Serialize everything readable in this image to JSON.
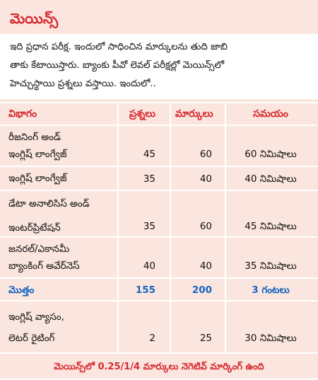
{
  "title": "మెయిన్స్",
  "intro_lines": [
    "ఇది ప్రధాన పరీక్ష. ఇందులో సాధించిన మార్కులను తుది జాబి",
    "తాకు కేటాయిస్తారు. బ్యాంకు పీవో లెవల్ పరీక్షల్లో మెయిన్స్‌లో",
    "హెచ్చుస్థాయి ప్రశ్నలు వస్తాయి. ఇందులో.."
  ],
  "table": {
    "headers": [
      "విభాగం",
      "ప్రశ్నలు",
      "మార్కులు",
      "సమయం"
    ],
    "rows": [
      {
        "label": [
          "రీజనింగ్ అండ్",
          "ఇంగ్లిష్ లాంగ్వేజ్"
        ],
        "questions": "45",
        "marks": "60",
        "time": "60 నిమిషాలు"
      },
      {
        "label": [
          "ఇంగ్లిష్ లాంగ్వేజ్"
        ],
        "questions": "35",
        "marks": "40",
        "time": "40 నిమిషాలు"
      },
      {
        "label": [
          "డేటా అనాలిసిస్ అండ్",
          "ఇంటర్‌ప్రిటేషన్"
        ],
        "questions": "35",
        "marks": "60",
        "time": "45 నిమిషాలు"
      },
      {
        "label": [
          "జనరల్/ఎకానమీ",
          "బ్యాంకింగ్ అవేర్‌నెస్"
        ],
        "questions": "40",
        "marks": "40",
        "time": "35 నిమిషాలు"
      }
    ],
    "total": {
      "label": "మొత్తం",
      "questions": "155",
      "marks": "200",
      "time": "3 గంటలు"
    },
    "extra": {
      "label": [
        "ఇంగ్లిష్ వ్యాసం,",
        "లెటర్ రైటింగ్"
      ],
      "questions": "2",
      "marks": "25",
      "time": "30 నిమిషాలు"
    }
  },
  "footer": "మెయిన్స్‌లో 0.25/1/4 మార్కులు నెగెటివ్ మార్కింగ్ ఉంది",
  "colors": {
    "accent": "#d7282f",
    "total": "#1565c0",
    "background": "#fbe6df"
  }
}
